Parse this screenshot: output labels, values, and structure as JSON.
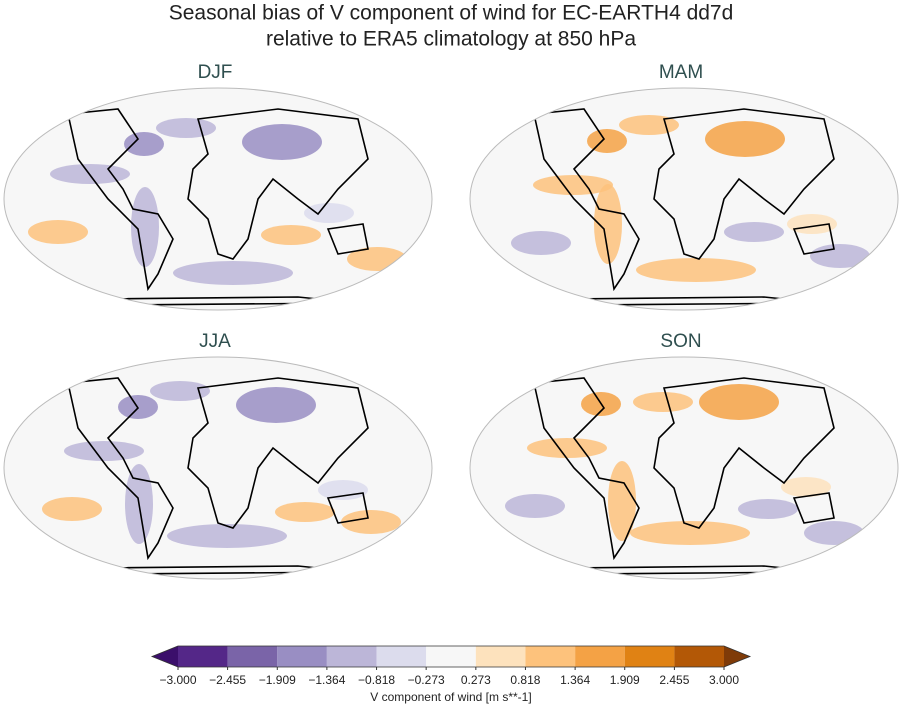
{
  "title_lines": [
    "Seasonal bias of V component of wind for EC-EARTH4 dd7d",
    "relative to ERA5 climatology at 850 hPa"
  ],
  "panels": [
    {
      "title": "DJF"
    },
    {
      "title": "MAM"
    },
    {
      "title": "JJA"
    },
    {
      "title": "SON"
    }
  ],
  "colorbar": {
    "label": "V component of wind [m s**-1]",
    "ticks": [
      {
        "value": -3.0,
        "label": "−3.000"
      },
      {
        "value": -2.455,
        "label": "−2.455"
      },
      {
        "value": -1.909,
        "label": "−1.909"
      },
      {
        "value": -1.364,
        "label": "−1.364"
      },
      {
        "value": -0.818,
        "label": "−0.818"
      },
      {
        "value": -0.273,
        "label": "−0.273"
      },
      {
        "value": 0.273,
        "label": "0.273"
      },
      {
        "value": 0.818,
        "label": "0.818"
      },
      {
        "value": 1.364,
        "label": "1.364"
      },
      {
        "value": 1.909,
        "label": "1.909"
      },
      {
        "value": 2.455,
        "label": "2.455"
      },
      {
        "value": 3.0,
        "label": "3.000"
      }
    ],
    "colors": [
      "#542788",
      "#7a64a8",
      "#998ec3",
      "#bcb6d8",
      "#dcdced",
      "#f7f7f7",
      "#fde2bd",
      "#fdc27c",
      "#f4a245",
      "#e08214",
      "#b35806"
    ],
    "under_color": "#3b0f6b",
    "over_color": "#7f3b08"
  }
}
